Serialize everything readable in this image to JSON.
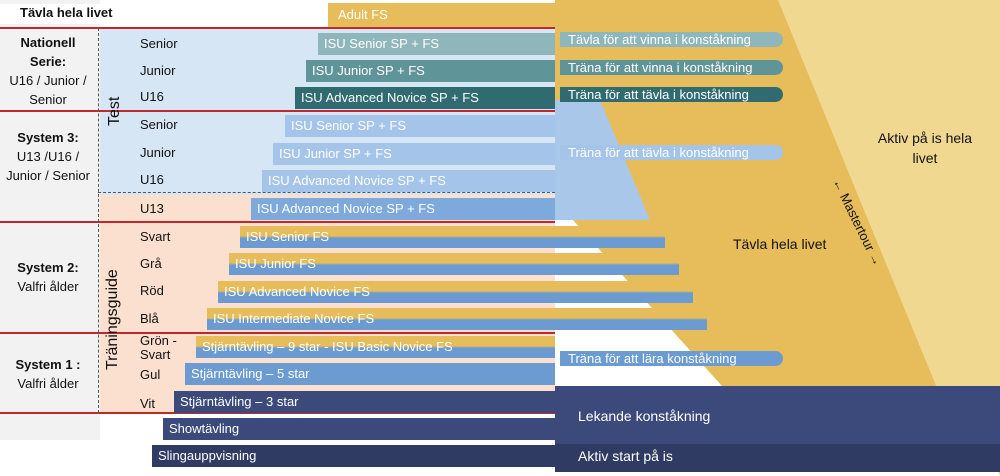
{
  "header": {
    "title": "Tävla hela livet",
    "adult": "Adult FS"
  },
  "left_groups": [
    {
      "title": "Nationell Serie:",
      "sub": "U16 / Junior / Senior"
    },
    {
      "title": "System 3:",
      "sub": "U13 /U16 / Junior / Senior"
    },
    {
      "title": "System 2:",
      "sub": "Valfri ålder"
    },
    {
      "title": "System 1 :",
      "sub": "Valfri ålder"
    }
  ],
  "vertical_labels": {
    "test": "Test",
    "training": "Träningsguide"
  },
  "levels": [
    "Senior",
    "Junior",
    "U16",
    "Senior",
    "Junior",
    "U16",
    "U13",
    "Svart",
    "Grå",
    "Röd",
    "Blå",
    "Grön - Svart",
    "Gul",
    "Vit"
  ],
  "bars": [
    "ISU Senior SP + FS",
    "ISU Junior SP + FS",
    "ISU Advanced Novice SP + FS",
    "ISU Senior SP + FS",
    "ISU Junior SP + FS",
    "ISU Advanced Novice SP + FS",
    "ISU Advanced Novice SP + FS",
    "ISU Senior FS",
    "ISU Junior FS",
    "ISU Advanced Novice FS",
    "ISU Intermediate Novice FS",
    "Stjärntävling – 9 star - ISU Basic Novice FS",
    "Stjärntävling – 5 star",
    "Stjärntävling – 3 star",
    "Showtävling",
    "Slingauppvisning"
  ],
  "pathways": {
    "win": "Tävla för att vinna i konståkning",
    "train_win": "Träna för att vinna i konståkning",
    "train_compete_1": "Träna för att tävla i konståkning",
    "train_compete_2": "Träna för att tävla i konståkning",
    "learn": "Träna för att lära konståkning",
    "compete_life": "Tävla hela livet",
    "active_life": "Aktiv på is hela livet",
    "mastertour": "Mastertour",
    "playful": "Lekande konståkning",
    "active_start": "Aktiv start på is"
  },
  "colors": {
    "gold": "#e6bd5a",
    "light_gold": "#f1d891",
    "teal": "#6fa3a8",
    "dark_teal": "#2f6b70",
    "blue": "#6b9bd0",
    "light_blue": "#d7e6f5",
    "peach": "#fbe0cf",
    "navy": "#3b4a7a",
    "red": "#c0282e"
  }
}
